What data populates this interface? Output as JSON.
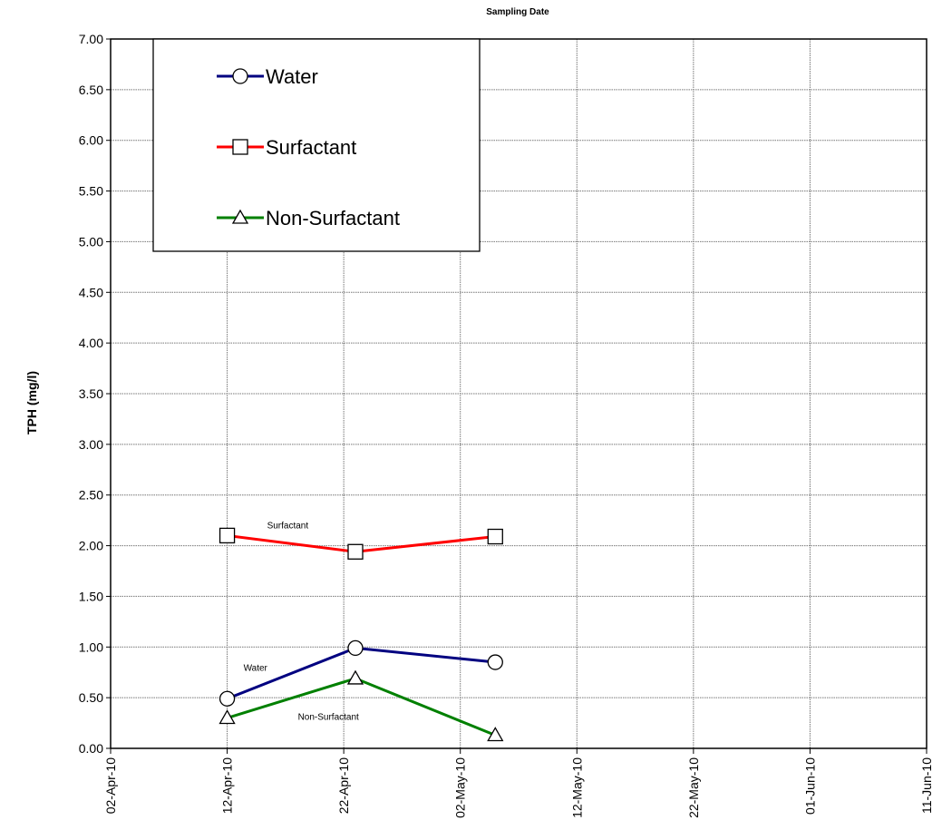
{
  "chart_data": {
    "type": "line",
    "title": "Sampling Date",
    "xlabel": "",
    "ylabel": "TPH (mg/l)",
    "x_axis_type": "date",
    "xlim": [
      "2010-04-02",
      "2010-06-11"
    ],
    "x_ticks": [
      "02-Apr-10",
      "12-Apr-10",
      "22-Apr-10",
      "02-May-10",
      "12-May-10",
      "22-May-10",
      "01-Jun-10",
      "11-Jun-10"
    ],
    "ylim": [
      0,
      7
    ],
    "y_ticks": [
      "0.00",
      "0.50",
      "1.00",
      "1.50",
      "2.00",
      "2.50",
      "3.00",
      "3.50",
      "4.00",
      "4.50",
      "5.00",
      "5.50",
      "6.00",
      "6.50",
      "7.00"
    ],
    "grid": true,
    "legend_position": "top-left",
    "series": [
      {
        "name": "Water",
        "color": "#000080",
        "marker": "circle",
        "annotation": "Water",
        "points": [
          {
            "x": "2010-04-12",
            "y": 0.49
          },
          {
            "x": "2010-04-23",
            "y": 0.99
          },
          {
            "x": "2010-05-05",
            "y": 0.85
          }
        ]
      },
      {
        "name": "Surfactant",
        "color": "#ff0000",
        "marker": "square",
        "annotation": "Surfactant",
        "points": [
          {
            "x": "2010-04-12",
            "y": 2.1
          },
          {
            "x": "2010-04-23",
            "y": 1.94
          },
          {
            "x": "2010-05-05",
            "y": 2.09
          }
        ]
      },
      {
        "name": "Non-Surfactant",
        "color": "#008000",
        "marker": "triangle",
        "annotation": "Non-Surfactant",
        "points": [
          {
            "x": "2010-04-12",
            "y": 0.3
          },
          {
            "x": "2010-04-23",
            "y": 0.69
          },
          {
            "x": "2010-05-05",
            "y": 0.13
          }
        ]
      }
    ]
  }
}
